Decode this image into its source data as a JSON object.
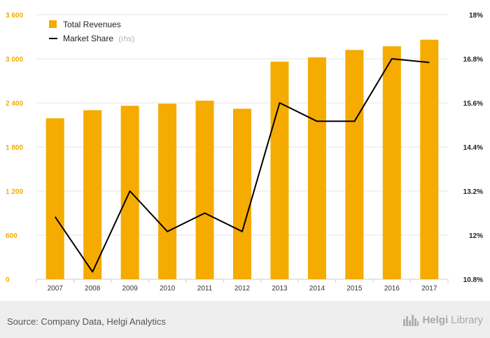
{
  "chart_data": {
    "type": "bar+line",
    "categories": [
      "2007",
      "2008",
      "2009",
      "2010",
      "2011",
      "2012",
      "2013",
      "2014",
      "2015",
      "2016",
      "2017"
    ],
    "series": [
      {
        "name": "Total Revenues",
        "type": "bar",
        "axis": "left",
        "color": "#f5ab00",
        "values": [
          2190,
          2300,
          2360,
          2390,
          2430,
          2320,
          2960,
          3020,
          3120,
          3170,
          3260
        ]
      },
      {
        "name": "Market Share",
        "name_suffix": "(rhs)",
        "type": "line",
        "axis": "right",
        "color": "#000000",
        "values": [
          12.5,
          11.0,
          13.2,
          12.1,
          12.6,
          12.1,
          15.6,
          15.1,
          15.1,
          16.8,
          16.7
        ]
      }
    ],
    "y_left": {
      "min": 0,
      "max": 3600,
      "ticks": [
        0,
        600,
        1200,
        1800,
        2400,
        3000,
        3600
      ],
      "tick_labels": [
        "0",
        "600",
        "1 200",
        "1 800",
        "2 400",
        "3 000",
        "3 600"
      ]
    },
    "y_right": {
      "min": 10.8,
      "max": 18,
      "ticks": [
        10.8,
        12,
        13.2,
        14.4,
        15.6,
        16.8,
        18
      ],
      "tick_labels": [
        "10.8%",
        "12%",
        "13.2%",
        "14.4%",
        "15.6%",
        "16.8%",
        "18%"
      ]
    },
    "grid": true,
    "legend_position": "top-left"
  },
  "footer": {
    "source": "Source: Company Data, Helgi Analytics",
    "brand_main": "Helgi",
    "brand_sub": "Library",
    "logo_icon": "city-skyline-icon"
  }
}
